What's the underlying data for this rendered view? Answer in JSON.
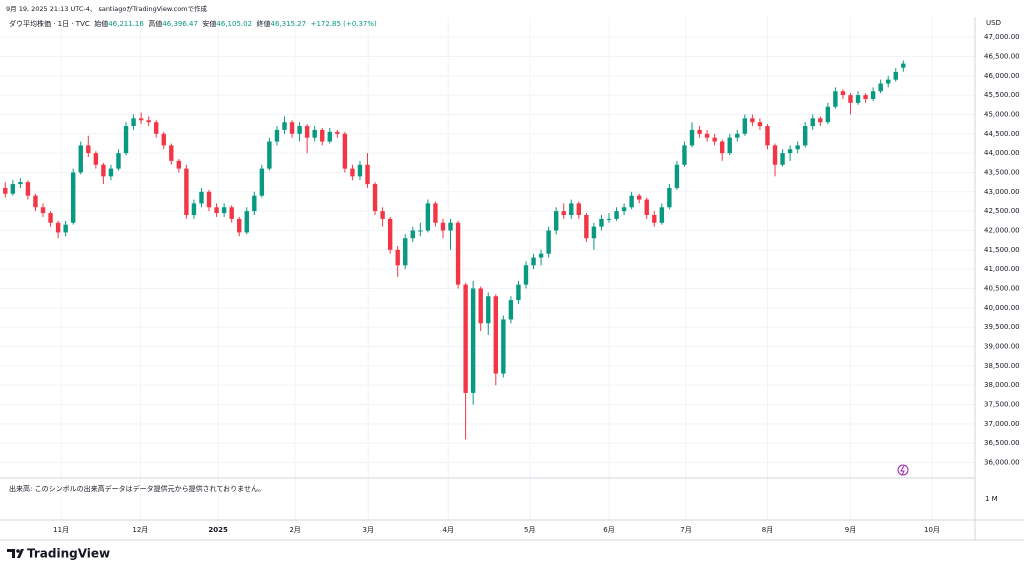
{
  "header": {
    "created": "9月 19, 2025 21:13 UTC-4、 santiagoがTradingView.comで作成",
    "symbol": "ダウ平均株価 · 1日 · TVC",
    "open_label": "始値",
    "open": "46,211.16",
    "high_label": "高値",
    "high": "46,396.47",
    "low_label": "安値",
    "low": "46,105.02",
    "close_label": "終値",
    "close": "46,315.27",
    "change": "+172.85 (+0.37%)"
  },
  "volume_note": "出来高: このシンボルの出来高データはデータ提供元から提供されておりません。",
  "volume_axis": "1 M",
  "logo": "TradingView",
  "chart_data": {
    "type": "candlestick",
    "currency": "USD",
    "up_color": "#089981",
    "down_color": "#f23645",
    "grid": true,
    "xlim": [
      -0.7,
      128.5
    ],
    "ylim": [
      35600,
      47520
    ],
    "xticks": [
      {
        "value": 7.4,
        "label": "11月"
      },
      {
        "value": 17.9,
        "label": "12月"
      },
      {
        "value": 28.2,
        "label": "2025"
      },
      {
        "value": 38.4,
        "label": "2月"
      },
      {
        "value": 48.1,
        "label": "3月"
      },
      {
        "value": 58.7,
        "label": "4月"
      },
      {
        "value": 69.5,
        "label": "5月"
      },
      {
        "value": 80,
        "label": "6月"
      },
      {
        "value": 90.2,
        "label": "7月"
      },
      {
        "value": 101,
        "label": "8月"
      },
      {
        "value": 112,
        "label": "9月"
      },
      {
        "value": 122.8,
        "label": "10月"
      }
    ],
    "yticks": [
      {
        "value": 36000,
        "label": "36,000.00"
      },
      {
        "value": 36500,
        "label": "36,500.00"
      },
      {
        "value": 37000,
        "label": "37,000.00"
      },
      {
        "value": 37500,
        "label": "37,500.00"
      },
      {
        "value": 38000,
        "label": "38,000.00"
      },
      {
        "value": 38500,
        "label": "38,500.00"
      },
      {
        "value": 39000,
        "label": "39,000.00"
      },
      {
        "value": 39500,
        "label": "39,500.00"
      },
      {
        "value": 40000,
        "label": "40,000.00"
      },
      {
        "value": 40500,
        "label": "40,500.00"
      },
      {
        "value": 41000,
        "label": "41,000.00"
      },
      {
        "value": 41500,
        "label": "41,500.00"
      },
      {
        "value": 42000,
        "label": "42,000.00"
      },
      {
        "value": 42500,
        "label": "42,500.00"
      },
      {
        "value": 43000,
        "label": "43,000.00"
      },
      {
        "value": 43500,
        "label": "43,500.00"
      },
      {
        "value": 44000,
        "label": "44,000.00"
      },
      {
        "value": 44500,
        "label": "44,500.00"
      },
      {
        "value": 45000,
        "label": "45,000.00"
      },
      {
        "value": 45500,
        "label": "45,500.00"
      },
      {
        "value": 46000,
        "label": "46,000.00"
      },
      {
        "value": 46500,
        "label": "46,500.00"
      },
      {
        "value": 47000,
        "label": "47,000.00"
      }
    ],
    "ohlc": [
      [
        43100,
        43250,
        42850,
        42950
      ],
      [
        42950,
        43300,
        42900,
        43200
      ],
      [
        43200,
        43350,
        43100,
        43250
      ],
      [
        43250,
        43300,
        42800,
        42900
      ],
      [
        42900,
        42950,
        42500,
        42600
      ],
      [
        42600,
        42700,
        42350,
        42450
      ],
      [
        42450,
        42500,
        42100,
        42200
      ],
      [
        42200,
        42250,
        41800,
        41950
      ],
      [
        41950,
        42250,
        41850,
        42150
      ],
      [
        42200,
        43600,
        42150,
        43500
      ],
      [
        43500,
        44300,
        43450,
        44200
      ],
      [
        44200,
        44450,
        43900,
        44000
      ],
      [
        44000,
        44050,
        43600,
        43700
      ],
      [
        43700,
        43750,
        43200,
        43400
      ],
      [
        43400,
        43700,
        43300,
        43600
      ],
      [
        43600,
        44100,
        43550,
        44000
      ],
      [
        44000,
        44800,
        43950,
        44700
      ],
      [
        44700,
        45000,
        44600,
        44900
      ],
      [
        44900,
        45050,
        44750,
        44850
      ],
      [
        44850,
        44950,
        44700,
        44800
      ],
      [
        44800,
        44850,
        44400,
        44500
      ],
      [
        44500,
        44550,
        44100,
        44200
      ],
      [
        44200,
        44250,
        43700,
        43800
      ],
      [
        43800,
        43850,
        43500,
        43600
      ],
      [
        43600,
        43700,
        42300,
        42400
      ],
      [
        42400,
        42800,
        42300,
        42700
      ],
      [
        42700,
        43100,
        42600,
        43000
      ],
      [
        43000,
        43050,
        42500,
        42600
      ],
      [
        42600,
        42700,
        42350,
        42450
      ],
      [
        42450,
        42700,
        42350,
        42600
      ],
      [
        42600,
        42650,
        42200,
        42300
      ],
      [
        42300,
        42350,
        41850,
        41950
      ],
      [
        41950,
        42600,
        41900,
        42500
      ],
      [
        42500,
        43000,
        42400,
        42900
      ],
      [
        42900,
        43700,
        42850,
        43600
      ],
      [
        43600,
        44400,
        43550,
        44300
      ],
      [
        44300,
        44700,
        44200,
        44600
      ],
      [
        44600,
        44950,
        44500,
        44800
      ],
      [
        44800,
        44850,
        44400,
        44500
      ],
      [
        44500,
        44800,
        44300,
        44700
      ],
      [
        44700,
        44750,
        44000,
        44400
      ],
      [
        44400,
        44700,
        44300,
        44600
      ],
      [
        44600,
        44650,
        44200,
        44300
      ],
      [
        44300,
        44650,
        44250,
        44550
      ],
      [
        44550,
        44600,
        44400,
        44500
      ],
      [
        44500,
        44550,
        43500,
        43600
      ],
      [
        43600,
        43700,
        43300,
        43400
      ],
      [
        43400,
        43800,
        43300,
        43700
      ],
      [
        43700,
        44000,
        43100,
        43200
      ],
      [
        43200,
        43250,
        42400,
        42500
      ],
      [
        42500,
        42600,
        42100,
        42300
      ],
      [
        42300,
        42350,
        41400,
        41500
      ],
      [
        41500,
        41600,
        40800,
        41100
      ],
      [
        41100,
        41900,
        41000,
        41800
      ],
      [
        41800,
        42100,
        41700,
        42000
      ],
      [
        42000,
        42200,
        41850,
        42000
      ],
      [
        42000,
        42800,
        41950,
        42700
      ],
      [
        42700,
        42750,
        42100,
        42200
      ],
      [
        42200,
        42300,
        41800,
        42000
      ],
      [
        42000,
        42300,
        41500,
        42200
      ],
      [
        42200,
        42250,
        40500,
        40600
      ],
      [
        40600,
        40650,
        36600,
        37800
      ],
      [
        37800,
        40700,
        37500,
        40500
      ],
      [
        40500,
        40550,
        39400,
        39600
      ],
      [
        39600,
        40400,
        39300,
        40300
      ],
      [
        40300,
        40350,
        38000,
        38300
      ],
      [
        38300,
        39800,
        38200,
        39700
      ],
      [
        39700,
        40300,
        39600,
        40200
      ],
      [
        40200,
        40700,
        40100,
        40600
      ],
      [
        40600,
        41200,
        40500,
        41100
      ],
      [
        41100,
        41400,
        41000,
        41300
      ],
      [
        41300,
        41500,
        41100,
        41400
      ],
      [
        41400,
        42100,
        41300,
        42000
      ],
      [
        42000,
        42600,
        41900,
        42500
      ],
      [
        42500,
        42700,
        42300,
        42400
      ],
      [
        42400,
        42800,
        42300,
        42700
      ],
      [
        42700,
        42750,
        42300,
        42400
      ],
      [
        42400,
        42450,
        41700,
        41800
      ],
      [
        41800,
        42200,
        41500,
        42100
      ],
      [
        42100,
        42400,
        42000,
        42300
      ],
      [
        42300,
        42450,
        42200,
        42300
      ],
      [
        42300,
        42600,
        42250,
        42500
      ],
      [
        42500,
        42700,
        42400,
        42600
      ],
      [
        42600,
        43000,
        42550,
        42900
      ],
      [
        42900,
        42950,
        42700,
        42800
      ],
      [
        42800,
        42850,
        42300,
        42400
      ],
      [
        42400,
        42500,
        42100,
        42200
      ],
      [
        42200,
        42700,
        42150,
        42600
      ],
      [
        42600,
        43200,
        42550,
        43100
      ],
      [
        43100,
        43800,
        43050,
        43700
      ],
      [
        43700,
        44300,
        43650,
        44200
      ],
      [
        44200,
        44800,
        44150,
        44600
      ],
      [
        44600,
        44700,
        44400,
        44500
      ],
      [
        44500,
        44600,
        44300,
        44400
      ],
      [
        44400,
        44500,
        44200,
        44300
      ],
      [
        44300,
        44350,
        43800,
        44000
      ],
      [
        44000,
        44500,
        43950,
        44400
      ],
      [
        44400,
        44600,
        44300,
        44500
      ],
      [
        44500,
        45000,
        44450,
        44900
      ],
      [
        44900,
        45000,
        44700,
        44800
      ],
      [
        44800,
        44900,
        44600,
        44700
      ],
      [
        44700,
        44750,
        44100,
        44200
      ],
      [
        44200,
        44250,
        43400,
        43700
      ],
      [
        43700,
        44100,
        43650,
        44000
      ],
      [
        44000,
        44200,
        43800,
        44100
      ],
      [
        44100,
        44300,
        44000,
        44200
      ],
      [
        44200,
        44800,
        44150,
        44700
      ],
      [
        44700,
        45000,
        44600,
        44900
      ],
      [
        44900,
        44950,
        44700,
        44800
      ],
      [
        44800,
        45300,
        44750,
        45200
      ],
      [
        45200,
        45700,
        45150,
        45600
      ],
      [
        45600,
        45650,
        45400,
        45500
      ],
      [
        45500,
        45550,
        45000,
        45300
      ],
      [
        45300,
        45600,
        45250,
        45500
      ],
      [
        45500,
        45550,
        45300,
        45400
      ],
      [
        45400,
        45700,
        45350,
        45600
      ],
      [
        45600,
        45900,
        45550,
        45800
      ],
      [
        45800,
        46000,
        45700,
        45900
      ],
      [
        45900,
        46200,
        45850,
        46100
      ],
      [
        46211.16,
        46396.47,
        46105.02,
        46315.27
      ]
    ]
  }
}
